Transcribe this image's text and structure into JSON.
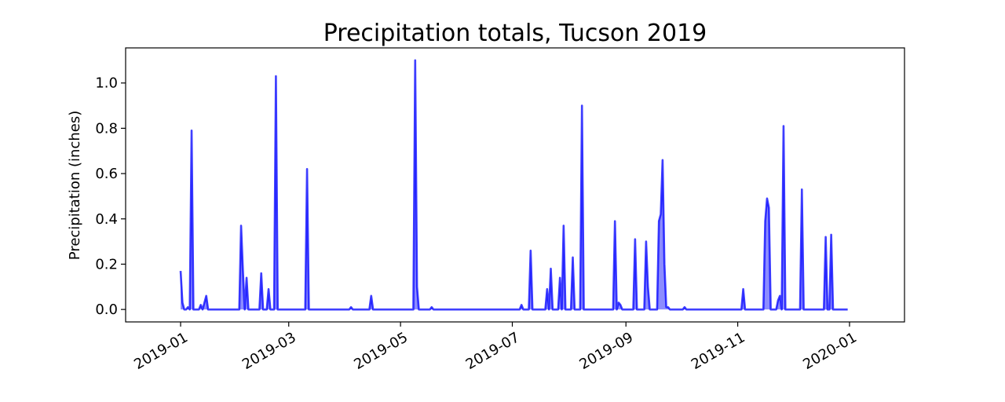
{
  "chart_data": {
    "type": "area",
    "title": "Precipitation totals, Tucson 2019",
    "xlabel": "",
    "ylabel": "Precipitation (inches)",
    "xlim": [
      "2018-12-02",
      "2020-01-31"
    ],
    "ylim": [
      -0.055,
      1.155
    ],
    "grid": false,
    "legend": "none",
    "color": "#0000ff",
    "x_ticks": [
      "2019-01",
      "2019-03",
      "2019-05",
      "2019-07",
      "2019-09",
      "2019-11",
      "2020-01"
    ],
    "y_ticks": [
      "0.0",
      "0.2",
      "0.4",
      "0.6",
      "0.8",
      "1.0"
    ],
    "points": [
      [
        "2019-01-01",
        0.17
      ],
      [
        "2019-01-02",
        0.03
      ],
      [
        "2019-01-03",
        0.0
      ],
      [
        "2019-01-04",
        0.0
      ],
      [
        "2019-01-05",
        0.01
      ],
      [
        "2019-01-06",
        0.0
      ],
      [
        "2019-01-07",
        0.79
      ],
      [
        "2019-01-08",
        0.0
      ],
      [
        "2019-01-10",
        0.0
      ],
      [
        "2019-01-11",
        0.0
      ],
      [
        "2019-01-12",
        0.02
      ],
      [
        "2019-01-13",
        0.0
      ],
      [
        "2019-01-15",
        0.06
      ],
      [
        "2019-01-16",
        0.0
      ],
      [
        "2019-02-02",
        0.0
      ],
      [
        "2019-02-03",
        0.37
      ],
      [
        "2019-02-04",
        0.17
      ],
      [
        "2019-02-05",
        0.0
      ],
      [
        "2019-02-06",
        0.14
      ],
      [
        "2019-02-07",
        0.0
      ],
      [
        "2019-02-13",
        0.0
      ],
      [
        "2019-02-14",
        0.16
      ],
      [
        "2019-02-15",
        0.0
      ],
      [
        "2019-02-17",
        0.0
      ],
      [
        "2019-02-18",
        0.09
      ],
      [
        "2019-02-19",
        0.0
      ],
      [
        "2019-02-21",
        0.0
      ],
      [
        "2019-02-22",
        1.03
      ],
      [
        "2019-02-23",
        0.0
      ],
      [
        "2019-03-10",
        0.0
      ],
      [
        "2019-03-11",
        0.62
      ],
      [
        "2019-03-12",
        0.0
      ],
      [
        "2019-04-03",
        0.0
      ],
      [
        "2019-04-04",
        0.01
      ],
      [
        "2019-04-05",
        0.0
      ],
      [
        "2019-04-14",
        0.0
      ],
      [
        "2019-04-15",
        0.06
      ],
      [
        "2019-04-16",
        0.0
      ],
      [
        "2019-05-08",
        0.0
      ],
      [
        "2019-05-09",
        1.1
      ],
      [
        "2019-05-10",
        0.1
      ],
      [
        "2019-05-11",
        0.0
      ],
      [
        "2019-05-17",
        0.0
      ],
      [
        "2019-05-18",
        0.01
      ],
      [
        "2019-05-19",
        0.0
      ],
      [
        "2019-07-05",
        0.0
      ],
      [
        "2019-07-06",
        0.02
      ],
      [
        "2019-07-07",
        0.0
      ],
      [
        "2019-07-10",
        0.0
      ],
      [
        "2019-07-11",
        0.26
      ],
      [
        "2019-07-12",
        0.0
      ],
      [
        "2019-07-19",
        0.0
      ],
      [
        "2019-07-20",
        0.09
      ],
      [
        "2019-07-21",
        0.0
      ],
      [
        "2019-07-22",
        0.18
      ],
      [
        "2019-07-23",
        0.0
      ],
      [
        "2019-07-26",
        0.0
      ],
      [
        "2019-07-27",
        0.14
      ],
      [
        "2019-07-28",
        0.0
      ],
      [
        "2019-07-29",
        0.37
      ],
      [
        "2019-07-30",
        0.0
      ],
      [
        "2019-08-02",
        0.0
      ],
      [
        "2019-08-03",
        0.23
      ],
      [
        "2019-08-04",
        0.0
      ],
      [
        "2019-08-07",
        0.0
      ],
      [
        "2019-08-08",
        0.9
      ],
      [
        "2019-08-09",
        0.0
      ],
      [
        "2019-08-25",
        0.0
      ],
      [
        "2019-08-26",
        0.39
      ],
      [
        "2019-08-27",
        0.0
      ],
      [
        "2019-08-28",
        0.03
      ],
      [
        "2019-08-29",
        0.02
      ],
      [
        "2019-08-30",
        0.0
      ],
      [
        "2019-09-05",
        0.0
      ],
      [
        "2019-09-06",
        0.31
      ],
      [
        "2019-09-07",
        0.0
      ],
      [
        "2019-09-11",
        0.0
      ],
      [
        "2019-09-12",
        0.3
      ],
      [
        "2019-09-13",
        0.1
      ],
      [
        "2019-09-14",
        0.0
      ],
      [
        "2019-09-18",
        0.0
      ],
      [
        "2019-09-19",
        0.39
      ],
      [
        "2019-09-20",
        0.42
      ],
      [
        "2019-09-21",
        0.66
      ],
      [
        "2019-09-22",
        0.2
      ],
      [
        "2019-09-23",
        0.01
      ],
      [
        "2019-09-24",
        0.01
      ],
      [
        "2019-09-25",
        0.0
      ],
      [
        "2019-10-02",
        0.0
      ],
      [
        "2019-10-03",
        0.01
      ],
      [
        "2019-10-04",
        0.0
      ],
      [
        "2019-11-03",
        0.0
      ],
      [
        "2019-11-04",
        0.09
      ],
      [
        "2019-11-05",
        0.0
      ],
      [
        "2019-11-15",
        0.0
      ],
      [
        "2019-11-16",
        0.39
      ],
      [
        "2019-11-17",
        0.49
      ],
      [
        "2019-11-18",
        0.45
      ],
      [
        "2019-11-19",
        0.0
      ],
      [
        "2019-11-22",
        0.0
      ],
      [
        "2019-11-23",
        0.04
      ],
      [
        "2019-11-24",
        0.06
      ],
      [
        "2019-11-25",
        0.0
      ],
      [
        "2019-11-26",
        0.81
      ],
      [
        "2019-11-27",
        0.0
      ],
      [
        "2019-12-05",
        0.0
      ],
      [
        "2019-12-06",
        0.53
      ],
      [
        "2019-12-07",
        0.0
      ],
      [
        "2019-12-18",
        0.0
      ],
      [
        "2019-12-19",
        0.32
      ],
      [
        "2019-12-20",
        0.0
      ],
      [
        "2019-12-21",
        0.0
      ],
      [
        "2019-12-22",
        0.33
      ],
      [
        "2019-12-23",
        0.0
      ],
      [
        "2019-12-31",
        0.0
      ]
    ]
  }
}
